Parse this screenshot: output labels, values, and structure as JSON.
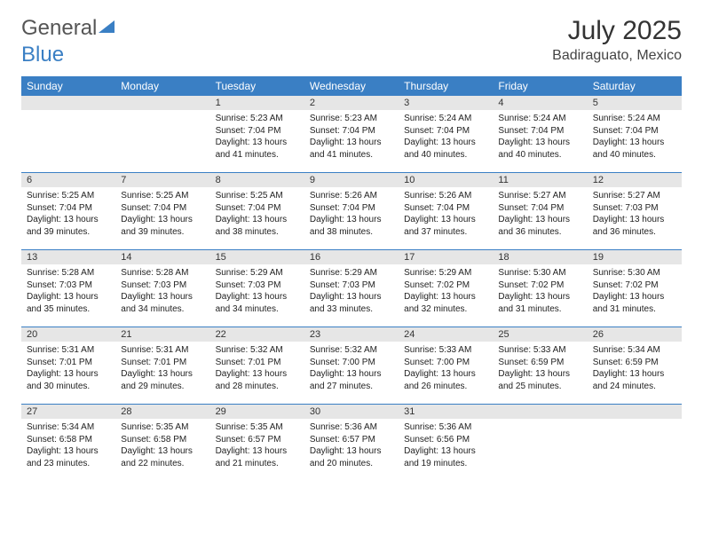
{
  "brand": {
    "part1": "General",
    "part2": "Blue"
  },
  "title": {
    "month": "July 2025",
    "location": "Badiraguato, Mexico"
  },
  "colors": {
    "header_bg": "#3a7fc4",
    "header_text": "#ffffff",
    "daynum_bg": "#e6e6e6",
    "border": "#3a7fc4",
    "body_text": "#222222"
  },
  "day_labels": [
    "Sunday",
    "Monday",
    "Tuesday",
    "Wednesday",
    "Thursday",
    "Friday",
    "Saturday"
  ],
  "weeks": [
    [
      null,
      null,
      {
        "n": "1",
        "sr": "5:23 AM",
        "ss": "7:04 PM",
        "dl": "13 hours and 41 minutes."
      },
      {
        "n": "2",
        "sr": "5:23 AM",
        "ss": "7:04 PM",
        "dl": "13 hours and 41 minutes."
      },
      {
        "n": "3",
        "sr": "5:24 AM",
        "ss": "7:04 PM",
        "dl": "13 hours and 40 minutes."
      },
      {
        "n": "4",
        "sr": "5:24 AM",
        "ss": "7:04 PM",
        "dl": "13 hours and 40 minutes."
      },
      {
        "n": "5",
        "sr": "5:24 AM",
        "ss": "7:04 PM",
        "dl": "13 hours and 40 minutes."
      }
    ],
    [
      {
        "n": "6",
        "sr": "5:25 AM",
        "ss": "7:04 PM",
        "dl": "13 hours and 39 minutes."
      },
      {
        "n": "7",
        "sr": "5:25 AM",
        "ss": "7:04 PM",
        "dl": "13 hours and 39 minutes."
      },
      {
        "n": "8",
        "sr": "5:25 AM",
        "ss": "7:04 PM",
        "dl": "13 hours and 38 minutes."
      },
      {
        "n": "9",
        "sr": "5:26 AM",
        "ss": "7:04 PM",
        "dl": "13 hours and 38 minutes."
      },
      {
        "n": "10",
        "sr": "5:26 AM",
        "ss": "7:04 PM",
        "dl": "13 hours and 37 minutes."
      },
      {
        "n": "11",
        "sr": "5:27 AM",
        "ss": "7:04 PM",
        "dl": "13 hours and 36 minutes."
      },
      {
        "n": "12",
        "sr": "5:27 AM",
        "ss": "7:03 PM",
        "dl": "13 hours and 36 minutes."
      }
    ],
    [
      {
        "n": "13",
        "sr": "5:28 AM",
        "ss": "7:03 PM",
        "dl": "13 hours and 35 minutes."
      },
      {
        "n": "14",
        "sr": "5:28 AM",
        "ss": "7:03 PM",
        "dl": "13 hours and 34 minutes."
      },
      {
        "n": "15",
        "sr": "5:29 AM",
        "ss": "7:03 PM",
        "dl": "13 hours and 34 minutes."
      },
      {
        "n": "16",
        "sr": "5:29 AM",
        "ss": "7:03 PM",
        "dl": "13 hours and 33 minutes."
      },
      {
        "n": "17",
        "sr": "5:29 AM",
        "ss": "7:02 PM",
        "dl": "13 hours and 32 minutes."
      },
      {
        "n": "18",
        "sr": "5:30 AM",
        "ss": "7:02 PM",
        "dl": "13 hours and 31 minutes."
      },
      {
        "n": "19",
        "sr": "5:30 AM",
        "ss": "7:02 PM",
        "dl": "13 hours and 31 minutes."
      }
    ],
    [
      {
        "n": "20",
        "sr": "5:31 AM",
        "ss": "7:01 PM",
        "dl": "13 hours and 30 minutes."
      },
      {
        "n": "21",
        "sr": "5:31 AM",
        "ss": "7:01 PM",
        "dl": "13 hours and 29 minutes."
      },
      {
        "n": "22",
        "sr": "5:32 AM",
        "ss": "7:01 PM",
        "dl": "13 hours and 28 minutes."
      },
      {
        "n": "23",
        "sr": "5:32 AM",
        "ss": "7:00 PM",
        "dl": "13 hours and 27 minutes."
      },
      {
        "n": "24",
        "sr": "5:33 AM",
        "ss": "7:00 PM",
        "dl": "13 hours and 26 minutes."
      },
      {
        "n": "25",
        "sr": "5:33 AM",
        "ss": "6:59 PM",
        "dl": "13 hours and 25 minutes."
      },
      {
        "n": "26",
        "sr": "5:34 AM",
        "ss": "6:59 PM",
        "dl": "13 hours and 24 minutes."
      }
    ],
    [
      {
        "n": "27",
        "sr": "5:34 AM",
        "ss": "6:58 PM",
        "dl": "13 hours and 23 minutes."
      },
      {
        "n": "28",
        "sr": "5:35 AM",
        "ss": "6:58 PM",
        "dl": "13 hours and 22 minutes."
      },
      {
        "n": "29",
        "sr": "5:35 AM",
        "ss": "6:57 PM",
        "dl": "13 hours and 21 minutes."
      },
      {
        "n": "30",
        "sr": "5:36 AM",
        "ss": "6:57 PM",
        "dl": "13 hours and 20 minutes."
      },
      {
        "n": "31",
        "sr": "5:36 AM",
        "ss": "6:56 PM",
        "dl": "13 hours and 19 minutes."
      },
      null,
      null
    ]
  ],
  "labels": {
    "sunrise": "Sunrise:",
    "sunset": "Sunset:",
    "daylight": "Daylight:"
  }
}
